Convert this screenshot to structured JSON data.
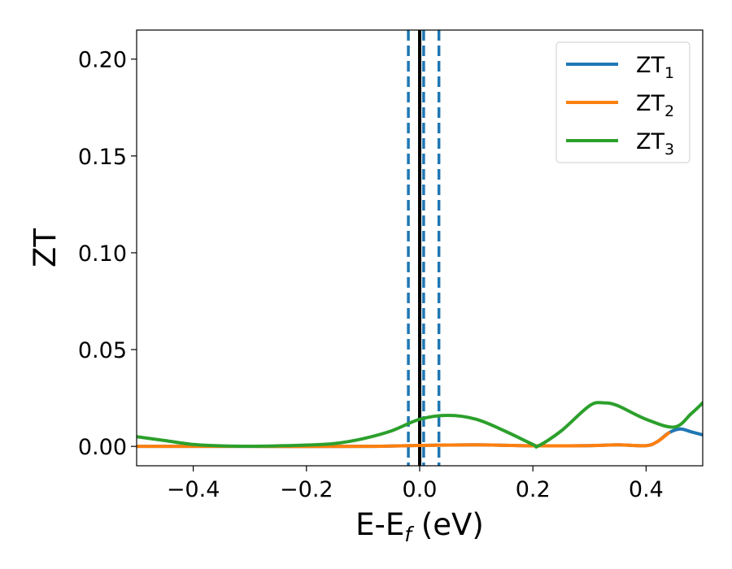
{
  "chart_data": {
    "type": "line",
    "title": "",
    "xlabel": {
      "main": "E-E",
      "sub": "f",
      "unit": " (eV)"
    },
    "ylabel": "ZT",
    "xlim": [
      -0.5,
      0.5
    ],
    "ylim": [
      -0.01,
      0.215
    ],
    "xticks": [
      -0.4,
      -0.2,
      0.0,
      0.2,
      0.4
    ],
    "xtick_labels": [
      "−0.4",
      "−0.2",
      "0.0",
      "0.2",
      "0.4"
    ],
    "yticks": [
      0.0,
      0.05,
      0.1,
      0.15,
      0.2
    ],
    "ytick_labels": [
      "0.00",
      "0.05",
      "0.10",
      "0.15",
      "0.20"
    ],
    "grid": false,
    "legend_position": "top-right",
    "series": [
      {
        "name": "ZT",
        "sub": "1",
        "color": "#1f77b4",
        "x": [
          -0.5,
          -0.3,
          -0.1,
          0.0,
          0.1,
          0.2,
          0.3,
          0.35,
          0.4,
          0.42,
          0.44,
          0.46,
          0.48,
          0.5
        ],
        "y": [
          0.0,
          0.0,
          0.0,
          0.0005,
          0.0008,
          0.0003,
          0.0004,
          0.0008,
          0.0004,
          0.0025,
          0.007,
          0.009,
          0.0075,
          0.006
        ]
      },
      {
        "name": "ZT",
        "sub": "2",
        "color": "#ff7f0e",
        "x": [
          -0.5,
          -0.3,
          -0.1,
          0.0,
          0.1,
          0.2,
          0.3,
          0.35,
          0.4,
          0.42,
          0.44
        ],
        "y": [
          0.0,
          0.0,
          0.0,
          0.0005,
          0.0008,
          0.0003,
          0.0004,
          0.0008,
          0.0004,
          0.0025,
          0.007
        ]
      },
      {
        "name": "ZT",
        "sub": "3",
        "color": "#2ca02c",
        "x": [
          -0.5,
          -0.45,
          -0.4,
          -0.35,
          -0.3,
          -0.25,
          -0.2,
          -0.15,
          -0.1,
          -0.05,
          0.0,
          0.05,
          0.1,
          0.15,
          0.2,
          0.21,
          0.25,
          0.3,
          0.325,
          0.35,
          0.4,
          0.45,
          0.48,
          0.5
        ],
        "y": [
          0.005,
          0.003,
          0.001,
          0.0003,
          0.0001,
          0.0003,
          0.0007,
          0.0015,
          0.004,
          0.008,
          0.014,
          0.016,
          0.014,
          0.008,
          0.001,
          0.0003,
          0.008,
          0.021,
          0.0225,
          0.021,
          0.014,
          0.01,
          0.017,
          0.0225
        ]
      }
    ],
    "vlines": [
      {
        "x": 0.0,
        "style": "solid",
        "color": "#000000"
      },
      {
        "x": -0.02,
        "style": "dashed",
        "color": "#1f77b4"
      },
      {
        "x": 0.007,
        "style": "dashed",
        "color": "#1f77b4"
      },
      {
        "x": 0.034,
        "style": "dashed",
        "color": "#1f77b4"
      }
    ]
  }
}
